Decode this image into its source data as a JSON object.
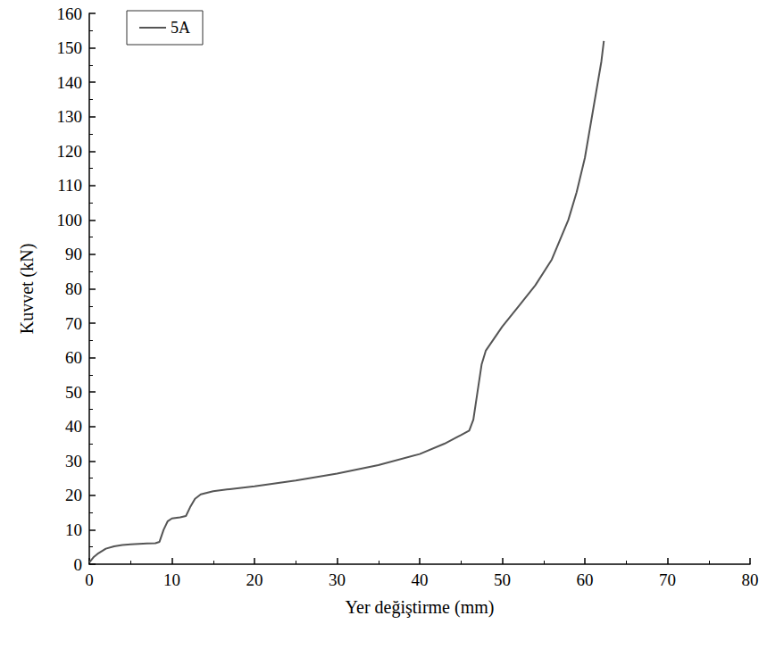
{
  "chart_data": {
    "type": "line",
    "x_label": "Yer değiştirme (mm)",
    "y_label": "Kuvvet (kN)",
    "xlim": [
      0,
      80
    ],
    "xticks": [
      0,
      10,
      20,
      30,
      40,
      50,
      60,
      70,
      80
    ],
    "ylim": [
      0,
      160
    ],
    "yticks": [
      0,
      10,
      20,
      30,
      40,
      50,
      60,
      70,
      80,
      90,
      100,
      110,
      120,
      130,
      140,
      150,
      160
    ],
    "grid": false,
    "legend": "upper left",
    "series": [
      {
        "name": "5A",
        "color": "#555555",
        "line_style": "solid",
        "x": [
          0,
          0.5,
          1,
          2,
          3,
          4,
          5,
          6,
          7,
          8,
          8.5,
          9,
          9.5,
          10,
          11,
          11.7,
          12.2,
          12.8,
          13.5,
          15,
          17,
          20,
          25,
          30,
          35,
          40,
          43,
          45,
          46,
          46.5,
          47,
          47.5,
          48,
          49,
          50,
          52,
          54,
          56,
          58,
          59,
          60,
          61,
          62,
          62.3
        ],
        "values": [
          0.5,
          2,
          3,
          4.5,
          5.2,
          5.6,
          5.8,
          5.9,
          6,
          6.1,
          6.5,
          10,
          12.5,
          13.3,
          13.6,
          14,
          16.5,
          19,
          20.3,
          21.2,
          21.8,
          22.6,
          24.3,
          26.3,
          28.8,
          32,
          35,
          37.5,
          38.8,
          42,
          50,
          58,
          62,
          65.5,
          69,
          75,
          81,
          88.5,
          100,
          108,
          118,
          132,
          146,
          152
        ]
      }
    ]
  }
}
